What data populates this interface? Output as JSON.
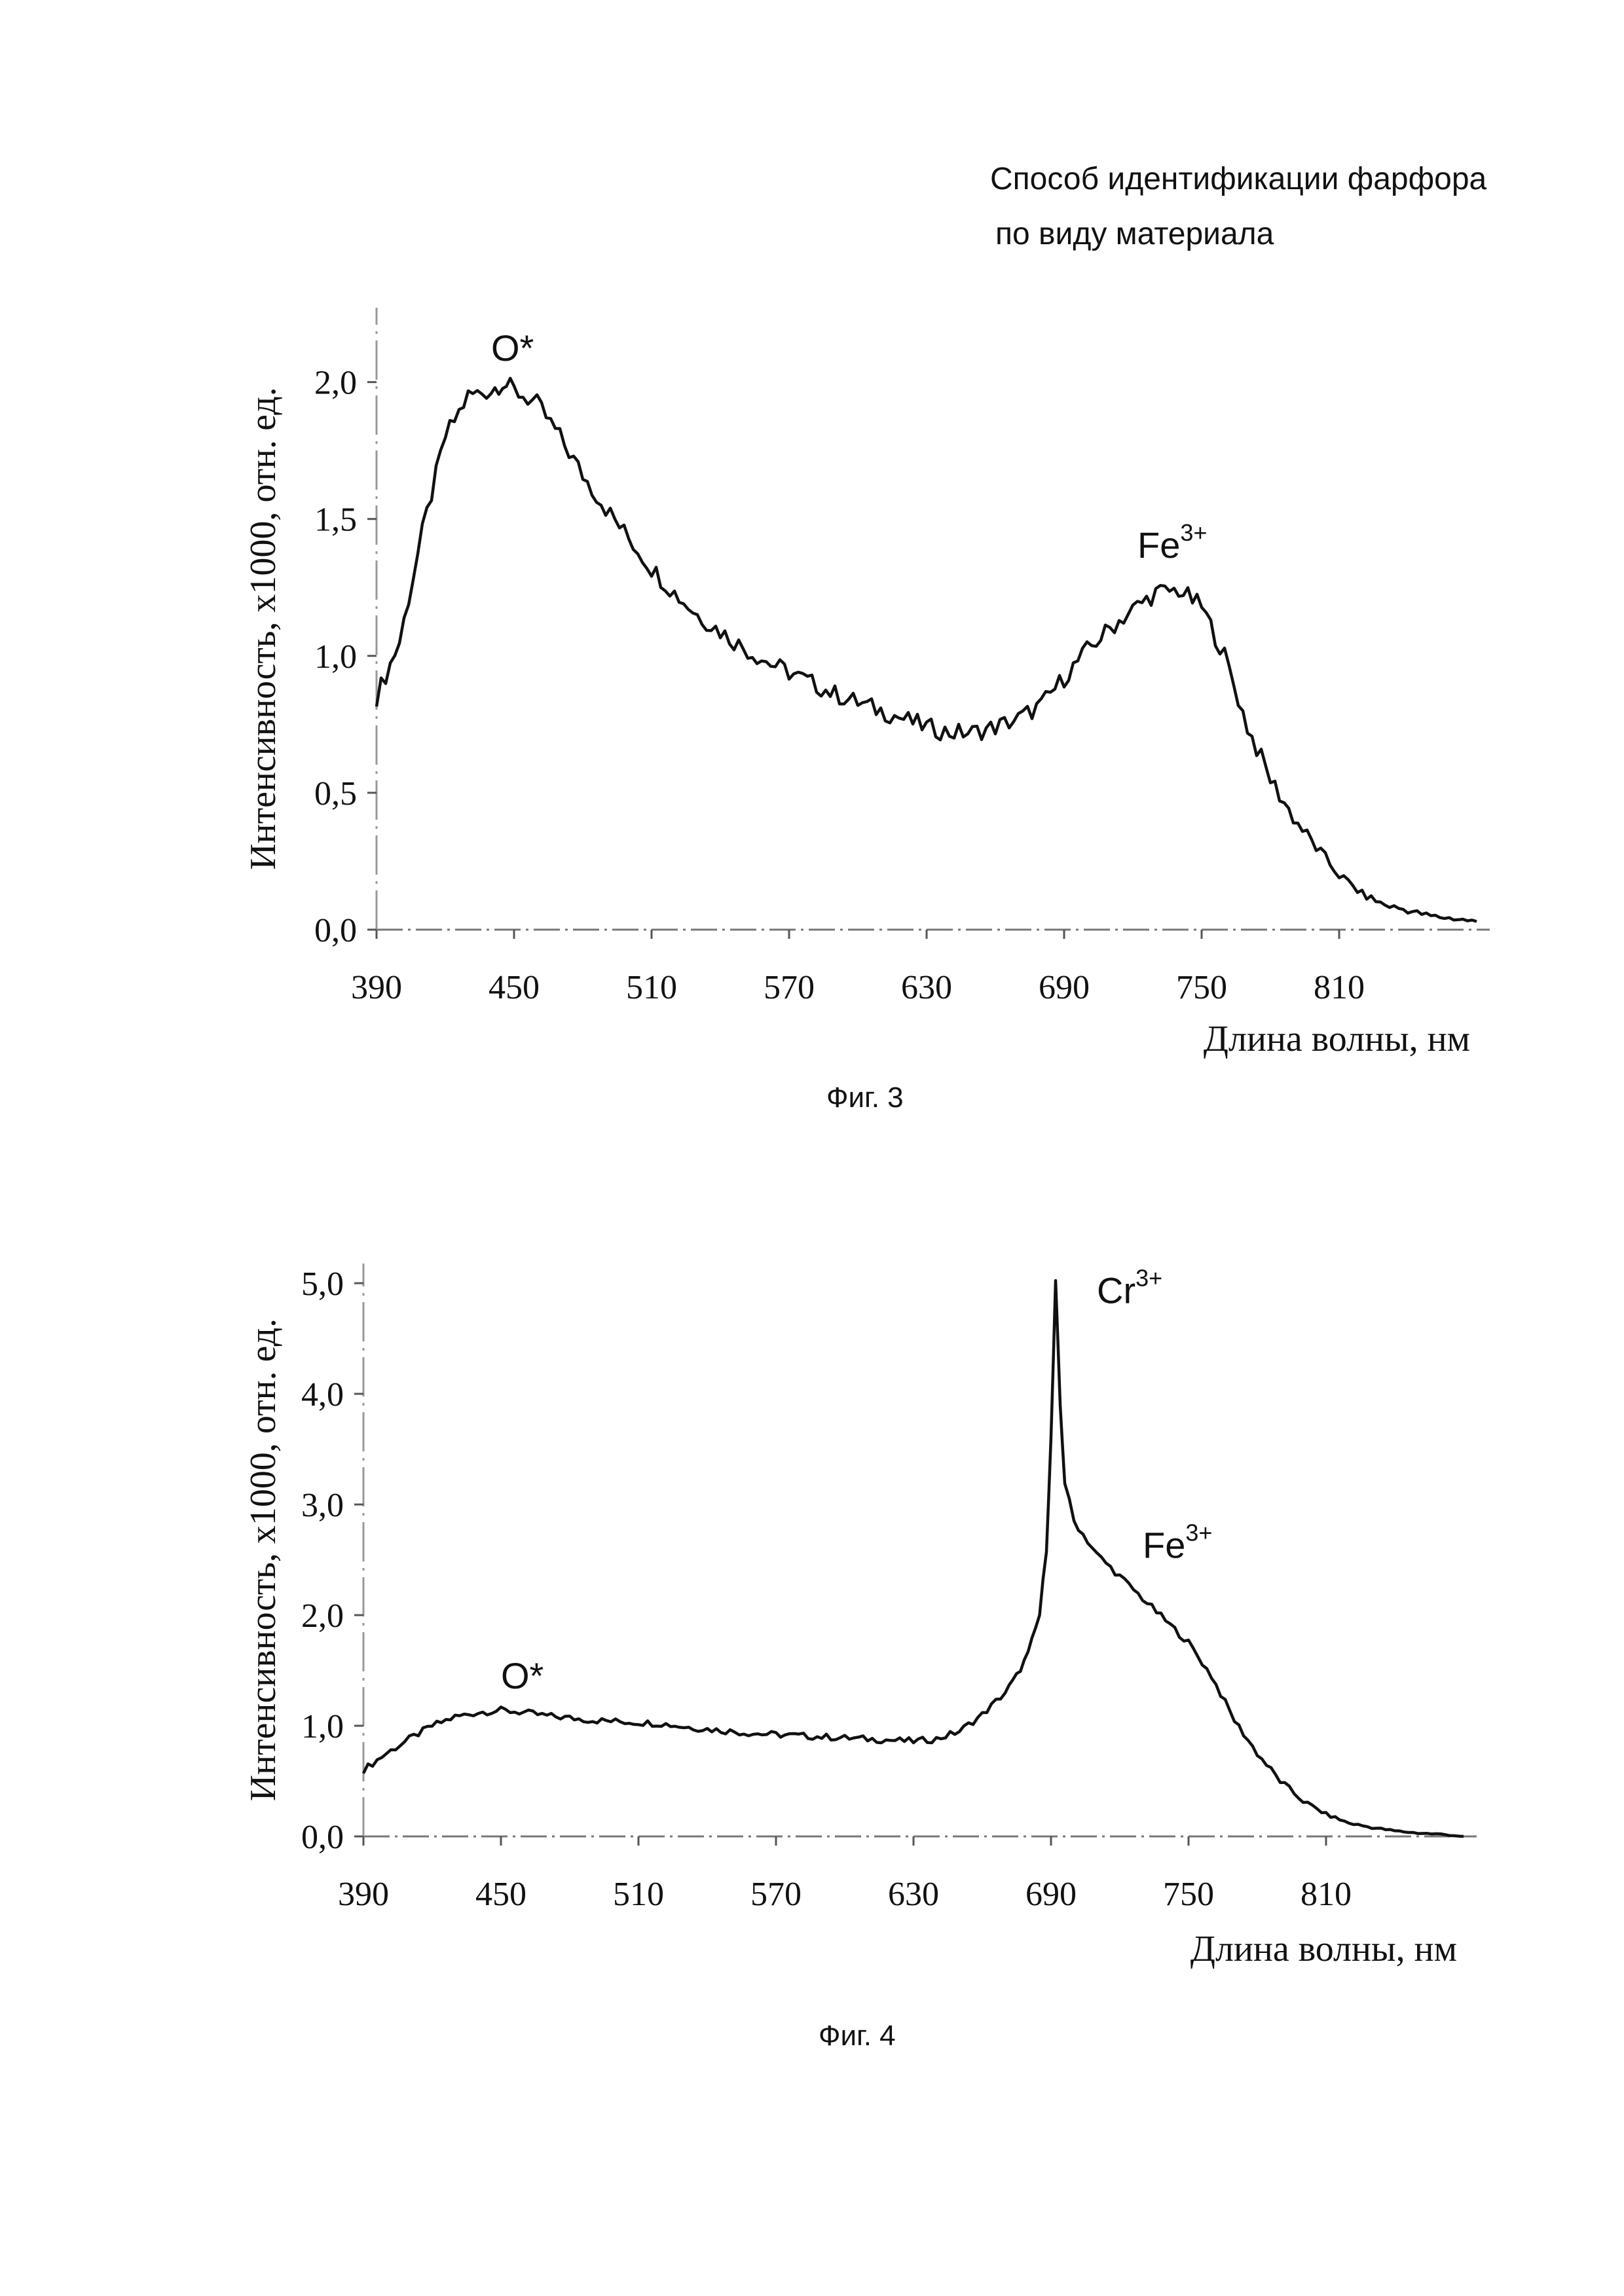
{
  "header": {
    "line1": "Способ идентификации фарфора",
    "line2": "по виду материала"
  },
  "chart_data": [
    {
      "type": "line",
      "id": "fig3",
      "caption": "Фиг. 3",
      "xlabel": "Длина волны, нм",
      "ylabel": "Интенсивность, х1000, отн. ед.",
      "xlim": [
        390,
        870
      ],
      "ylim": [
        0,
        2.2
      ],
      "x_ticks": [
        "390",
        "450",
        "510",
        "570",
        "630",
        "690",
        "750",
        "810"
      ],
      "y_ticks": [
        "0,0",
        "0,5",
        "1,0",
        "1,5",
        "2,0"
      ],
      "annotations": [
        {
          "text": "O*",
          "sup": "",
          "x": 440,
          "y": 2.03
        },
        {
          "text": "Fe",
          "sup": "3+",
          "x": 722,
          "y": 1.31
        }
      ],
      "series": [
        {
          "name": "Фиг. 3 spectrum",
          "x": [
            390,
            400,
            410,
            420,
            430,
            440,
            445,
            450,
            460,
            470,
            480,
            490,
            500,
            510,
            520,
            530,
            540,
            550,
            560,
            570,
            580,
            590,
            600,
            610,
            620,
            630,
            640,
            650,
            660,
            670,
            680,
            690,
            700,
            710,
            720,
            730,
            740,
            750,
            760,
            770,
            780,
            790,
            800,
            810,
            820,
            830,
            840,
            850,
            860,
            870
          ],
          "y": [
            0.85,
            1.05,
            1.45,
            1.8,
            1.95,
            1.97,
            2.0,
            1.97,
            1.92,
            1.8,
            1.66,
            1.54,
            1.43,
            1.32,
            1.23,
            1.15,
            1.09,
            1.03,
            0.98,
            0.94,
            0.9,
            0.86,
            0.83,
            0.8,
            0.77,
            0.74,
            0.72,
            0.72,
            0.74,
            0.77,
            0.82,
            0.92,
            1.02,
            1.1,
            1.17,
            1.23,
            1.24,
            1.18,
            1.0,
            0.74,
            0.55,
            0.41,
            0.3,
            0.2,
            0.13,
            0.09,
            0.07,
            0.05,
            0.04,
            0.03
          ]
        }
      ]
    },
    {
      "type": "line",
      "id": "fig4",
      "caption": "Фиг. 4",
      "xlabel": "Длина волны, нм",
      "ylabel": "Интенсивность, х1000, отн. ед.",
      "xlim": [
        390,
        870
      ],
      "ylim": [
        0,
        5.0
      ],
      "x_ticks": [
        "390",
        "450",
        "510",
        "570",
        "630",
        "690",
        "750",
        "810"
      ],
      "y_ticks": [
        "0,0",
        "1,0",
        "2,0",
        "3,0",
        "4,0",
        "5,0"
      ],
      "annotations": [
        {
          "text": "O*",
          "sup": "",
          "x": 450,
          "y": 1.22
        },
        {
          "text": "Cr",
          "sup": "3+",
          "x": 710,
          "y": 4.7
        },
        {
          "text": "Fe",
          "sup": "3+",
          "x": 730,
          "y": 2.4
        }
      ],
      "series": [
        {
          "name": "Фиг. 4 spectrum",
          "x": [
            390,
            400,
            410,
            420,
            430,
            440,
            450,
            460,
            470,
            480,
            490,
            500,
            510,
            520,
            530,
            540,
            550,
            560,
            570,
            580,
            590,
            600,
            610,
            620,
            630,
            640,
            650,
            660,
            670,
            675,
            680,
            685,
            688,
            690,
            692,
            694,
            696,
            700,
            710,
            720,
            730,
            740,
            750,
            760,
            770,
            780,
            790,
            800,
            810,
            820,
            830,
            840,
            850,
            860,
            870
          ],
          "y": [
            0.6,
            0.75,
            0.88,
            1.0,
            1.08,
            1.12,
            1.14,
            1.12,
            1.09,
            1.07,
            1.05,
            1.04,
            1.03,
            1.02,
            0.99,
            0.97,
            0.95,
            0.93,
            0.92,
            0.91,
            0.9,
            0.89,
            0.88,
            0.87,
            0.86,
            0.88,
            0.95,
            1.1,
            1.3,
            1.45,
            1.65,
            2.0,
            2.6,
            3.6,
            5.0,
            3.9,
            3.2,
            2.85,
            2.55,
            2.35,
            2.15,
            1.95,
            1.75,
            1.45,
            1.05,
            0.75,
            0.5,
            0.32,
            0.2,
            0.12,
            0.08,
            0.05,
            0.03,
            0.02,
            0.0
          ]
        }
      ]
    }
  ]
}
